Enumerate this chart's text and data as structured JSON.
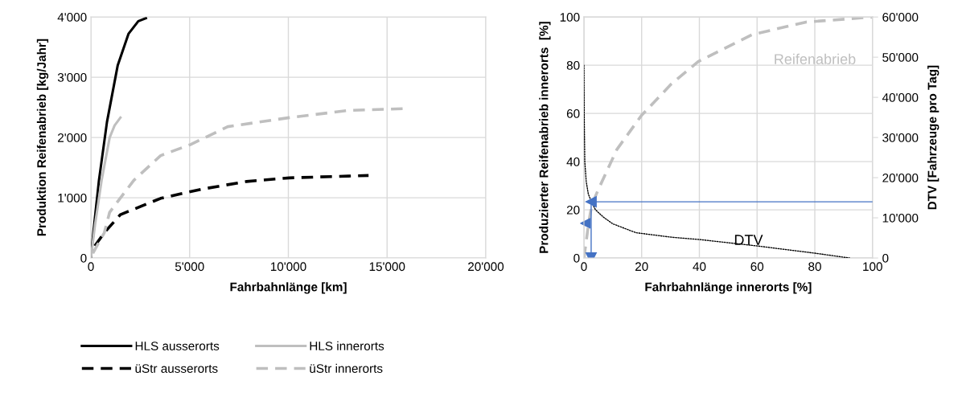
{
  "chart_data": [
    {
      "type": "line",
      "xlabel": "Fahrbahnlänge [km]",
      "ylabel": "Produktion Reifenabrieb [kg/Jahr]",
      "xlim": [
        0,
        20000
      ],
      "xticks": [
        0,
        {
          "value": 5000,
          "label": "5'000"
        },
        {
          "value": 10000,
          "label": "10'000"
        },
        {
          "value": 15000,
          "label": "15'000"
        },
        {
          "value": 20000,
          "label": "20'000"
        }
      ],
      "ylim": [
        0,
        4000
      ],
      "yticks": [
        0,
        {
          "value": 1000,
          "label": "1'000"
        },
        {
          "value": 2000,
          "label": "2'000"
        },
        {
          "value": 3000,
          "label": "3'000"
        },
        {
          "value": 4000,
          "label": "4'000"
        }
      ],
      "grid": true,
      "legend": "bottom",
      "series": [
        {
          "name": "HLS ausserorts",
          "color": "#000000",
          "line_style": "solid",
          "x": [
            0,
            136,
            408,
            815,
            1359,
            1902,
            2400,
            2785
          ],
          "values": [
            0,
            460,
            1290,
            2260,
            3200,
            3720,
            3930,
            3980
          ]
        },
        {
          "name": "HLS innerorts",
          "color": "#bfbfbf",
          "line_style": "solid",
          "x": [
            0,
            204,
            543,
            951,
            1200,
            1495
          ],
          "values": [
            0,
            540,
            1290,
            2000,
            2200,
            2330
          ]
        },
        {
          "name": "üStr ausserorts",
          "color": "#000000",
          "line_style": "dashed",
          "x": [
            200,
            679,
            1495,
            3533,
            5571,
            7880,
            10054,
            13043,
            14062
          ],
          "values": [
            200,
            420,
            720,
            990,
            1140,
            1270,
            1330,
            1360,
            1370
          ]
        },
        {
          "name": "üStr innerorts",
          "color": "#bfbfbf",
          "line_style": "dashed",
          "x": [
            100,
            679,
            951,
            2174,
            3533,
            5027,
            6929,
            10054,
            13043,
            15965
          ],
          "values": [
            80,
            420,
            760,
            1290,
            1700,
            1880,
            2180,
            2330,
            2450,
            2480
          ]
        }
      ]
    },
    {
      "type": "line",
      "xlabel": "Fahrbahnlänge innerorts [%]",
      "ylabel": "Produzierter Reifenabrieb innerorts  [%]",
      "y2label": "DTV [Fahrzeuge pro Tag]",
      "xlim": [
        0,
        100
      ],
      "xticks": [
        0,
        20,
        40,
        60,
        80,
        100
      ],
      "ylim": [
        0,
        100
      ],
      "yticks": [
        0,
        20,
        40,
        60,
        80,
        100
      ],
      "y2lim": [
        0,
        60000
      ],
      "y2ticks": [
        0,
        {
          "value": 10000,
          "label": "10'000"
        },
        {
          "value": 20000,
          "label": "20'000"
        },
        {
          "value": 30000,
          "label": "30'000"
        },
        {
          "value": 40000,
          "label": "40'000"
        },
        {
          "value": 50000,
          "label": "50'000"
        },
        {
          "value": 60000,
          "label": "60'000"
        }
      ],
      "grid": true,
      "series": [
        {
          "color": "#bfbfbf",
          "line_style": "dashed",
          "x": [
            0,
            0.8,
            1.6,
            2.7,
            4.9,
            11.4,
            19.9,
            30.2,
            39.6,
            58.3,
            77.0,
            100
          ],
          "values": [
            0,
            7,
            14.2,
            22,
            28.2,
            45.0,
            59.1,
            72.1,
            81.5,
            92.7,
            97.9,
            100
          ]
        },
        {
          "color": "#000000",
          "line_style": "dotted",
          "axis": "y2",
          "x": [
            0,
            0.1,
            0.3,
            0.8,
            1.5,
            2.5,
            4,
            6.7,
            10,
            18,
            30,
            40,
            60,
            80,
            92
          ],
          "values": [
            48000,
            36000,
            24000,
            19000,
            16000,
            14100,
            12000,
            10200,
            8500,
            6300,
            5200,
            4600,
            3000,
            1200,
            0
          ]
        },
        {
          "color": "#4472c4",
          "line_style": "solid",
          "marker": "triangle",
          "axis": "y2",
          "x": [
            2.5,
            100
          ],
          "values": [
            14000,
            14000
          ]
        },
        {
          "color": "#4472c4",
          "line_style": "solid",
          "marker": "triangle",
          "x": [
            2.5,
            2.5
          ],
          "values": [
            23.3,
            0
          ]
        },
        {
          "type": "scatter",
          "color": "#4472c4",
          "marker": "triangle",
          "x": [
            0.5
          ],
          "values": [
            14.4
          ]
        }
      ],
      "annotations": [
        "Reifenabrieb",
        {
          "text": "DTV",
          "x": 57,
          "y": 7
        }
      ]
    }
  ]
}
